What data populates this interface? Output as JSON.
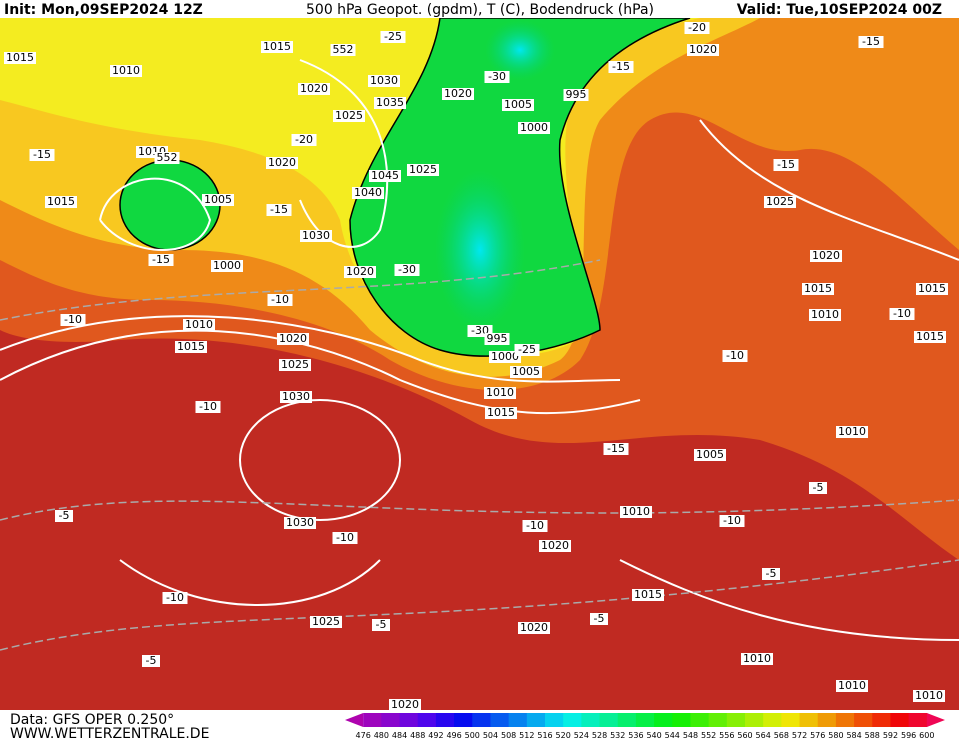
{
  "header": {
    "init": "Init: Mon,09SEP2024 12Z",
    "title": "500 hPa Geopot. (gpdm), T (C), Bodendruck (hPa)",
    "valid": "Valid: Tue,10SEP2024 00Z"
  },
  "map": {
    "labels": [
      "1015",
      "1010",
      "1015",
      "552",
      "-25",
      "-20",
      "1020",
      "-15",
      "1020",
      "1030",
      "1020",
      "-30",
      "1005",
      "995",
      "-15",
      "1035",
      "1025",
      "1000",
      "-15",
      "1010",
      "552",
      "-20",
      "1020",
      "1045",
      "1025",
      "-15",
      "1015",
      "1005",
      "-15",
      "1040",
      "1025",
      "1030",
      "-15",
      "1000",
      "1020",
      "-30",
      "1020",
      "-10",
      "1015",
      "1015",
      "-10",
      "1010",
      "-30",
      "995",
      "1010",
      "-10",
      "1015",
      "1015",
      "1020",
      "1000",
      "-25",
      "-10",
      "1025",
      "1005",
      "1030",
      "1010",
      "-10",
      "1015",
      "1010",
      "-15",
      "1005",
      "-5",
      "-5",
      "1030",
      "1010",
      "-10",
      "-10",
      "-10",
      "1020",
      "-5",
      "-10",
      "1015",
      "1025",
      "-5",
      "-5",
      "1020",
      "-5",
      "1010",
      "1010",
      "1010",
      "1020"
    ]
  },
  "footer": {
    "data": "Data: GFS OPER 0.250°",
    "site": "WWW.WETTERZENTRALE.DE"
  },
  "colorbar": {
    "labels": [
      476,
      480,
      484,
      488,
      492,
      496,
      500,
      504,
      508,
      512,
      516,
      520,
      524,
      528,
      532,
      536,
      540,
      544,
      548,
      552,
      556,
      560,
      564,
      568,
      572,
      576,
      580,
      584,
      588,
      592,
      596,
      600
    ]
  }
}
